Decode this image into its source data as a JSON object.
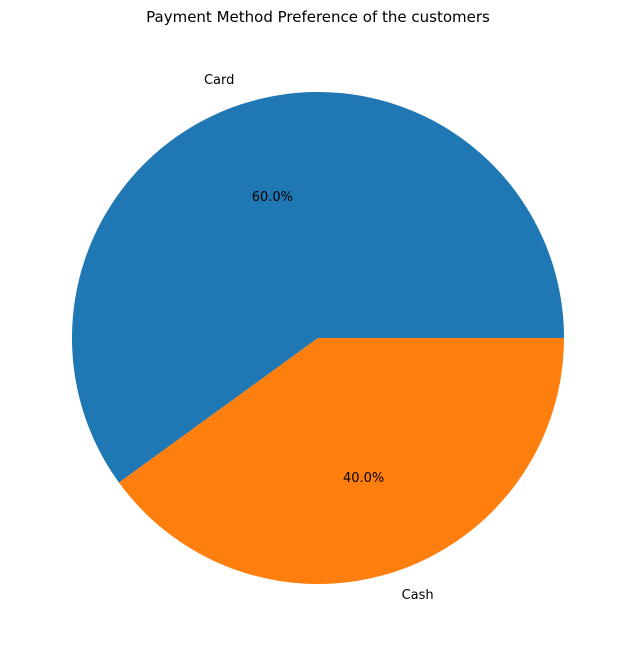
{
  "chart_data": {
    "type": "pie",
    "title": "Payment Method Preference of the customers",
    "categories": [
      "Card",
      "Cash"
    ],
    "values": [
      60,
      40
    ],
    "percent_labels": [
      "60.0%",
      "40.0%"
    ],
    "colors": [
      "#1f77b4",
      "#ff7f0e"
    ],
    "start_angle_deg": 0,
    "direction": "counterclockwise",
    "legend": "none"
  }
}
